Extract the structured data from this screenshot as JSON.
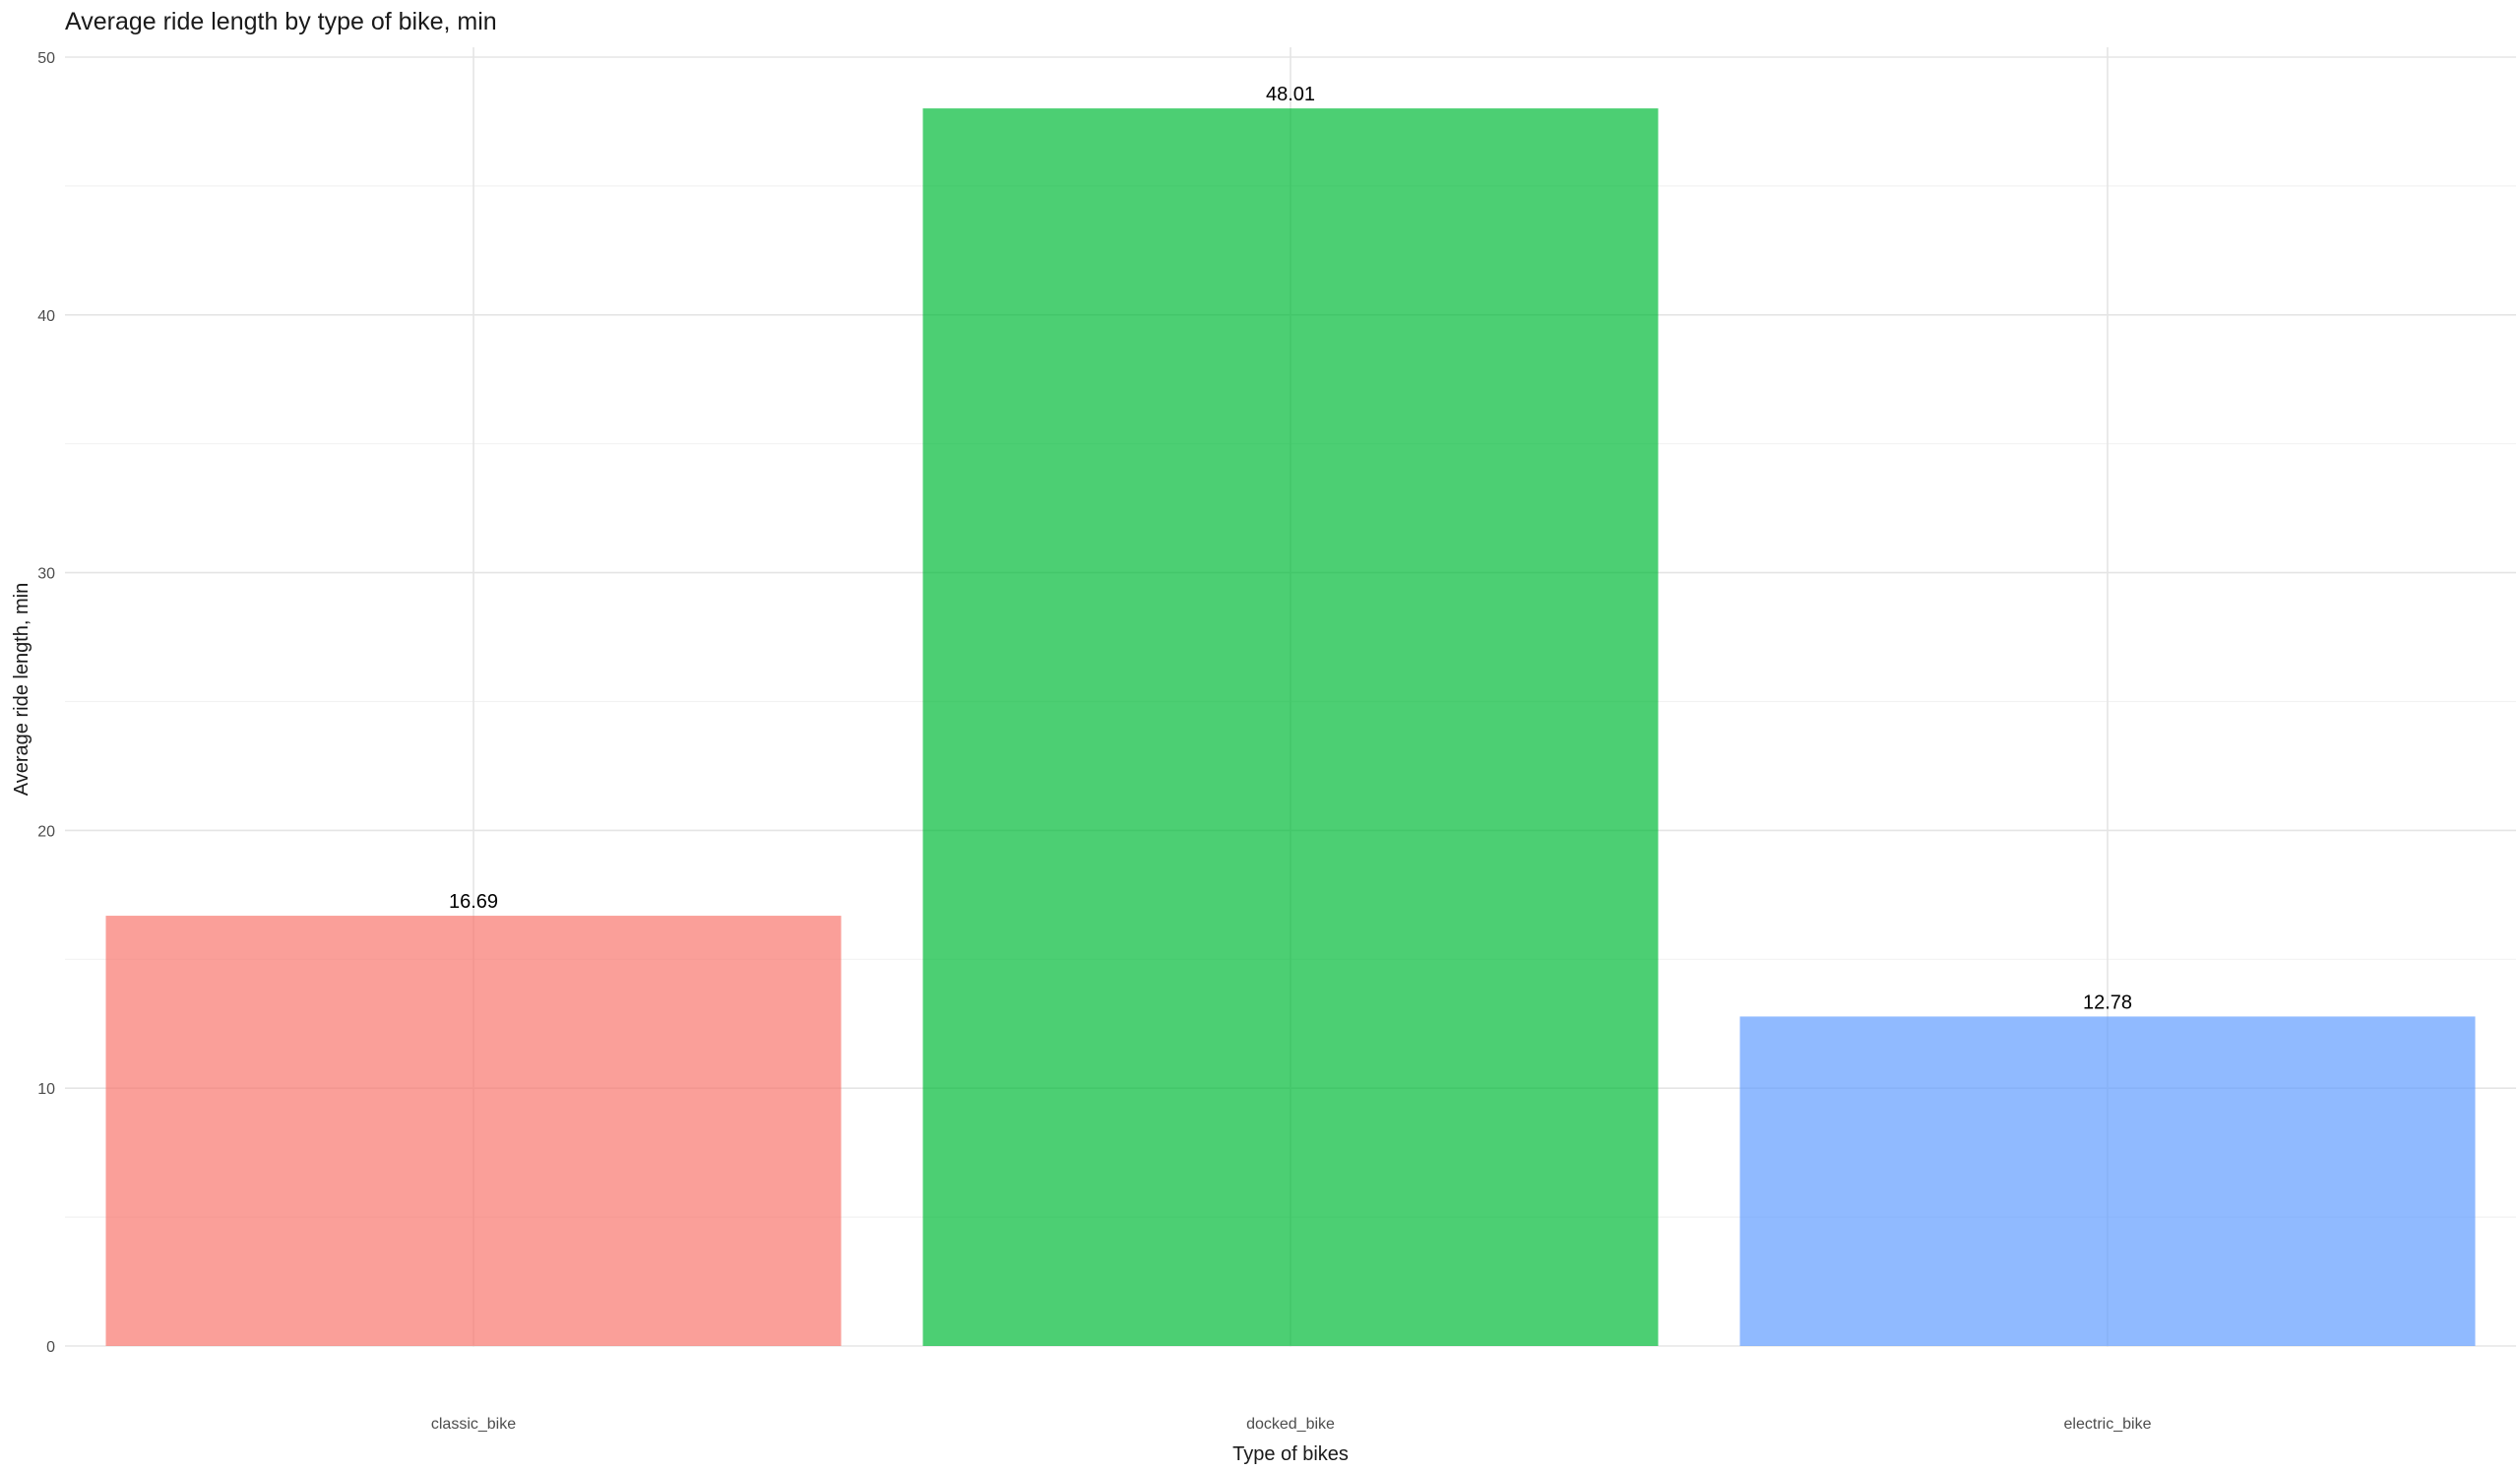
{
  "chart_data": {
    "type": "bar",
    "title": "Average ride length by type of bike, min",
    "xlabel": "Type of bikes",
    "ylabel": "Average ride length, min",
    "categories": [
      "classic_bike",
      "docked_bike",
      "electric_bike"
    ],
    "values": [
      16.69,
      48.01,
      12.78
    ],
    "data_labels": [
      "16.69",
      "48.01",
      "12.78"
    ],
    "colors": [
      "#F8766D",
      "#00BA38",
      "#619CFF"
    ],
    "bar_opacity": 0.7,
    "ylim": [
      0,
      50
    ],
    "yticks": [
      0,
      10,
      20,
      30,
      40,
      50
    ],
    "ytick_labels": [
      "0",
      "10",
      "20",
      "30",
      "40",
      "50"
    ],
    "grid": true,
    "legend": "none"
  }
}
